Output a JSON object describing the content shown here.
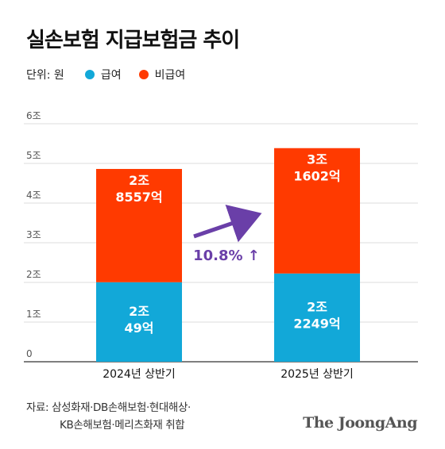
{
  "title": "실손보험 지급보험금 추이",
  "unit_label": "단위: 원",
  "legend": [
    {
      "label": "급여",
      "color": "#12a8d8"
    },
    {
      "label": "비급여",
      "color": "#ff3a00"
    }
  ],
  "chart_data": {
    "type": "bar",
    "stacked": true,
    "categories": [
      "2024년 상반기",
      "2025년 상반기"
    ],
    "ylim": [
      0,
      6
    ],
    "y_ticks": [
      "0",
      "1조",
      "2조",
      "3조",
      "4조",
      "5조",
      "6조"
    ],
    "grid": true,
    "series": [
      {
        "name": "급여",
        "color": "#12a8d8",
        "values": [
          2.0049,
          2.2249
        ],
        "labels": [
          [
            "2조",
            "49억"
          ],
          [
            "2조",
            "2249억"
          ]
        ]
      },
      {
        "name": "비급여",
        "color": "#ff3a00",
        "values": [
          2.8557,
          3.1602
        ],
        "labels": [
          [
            "2조",
            "8557억"
          ],
          [
            "3조",
            "1602억"
          ]
        ]
      }
    ],
    "annotation": {
      "text": "10.8% ↑",
      "color": "#6a3fa8"
    }
  },
  "source": {
    "line1": "자료: 삼성화재·DB손해보험·현대해상·",
    "line2": "KB손해보험·메리츠화재 취합"
  },
  "brand": "The JoongAng"
}
